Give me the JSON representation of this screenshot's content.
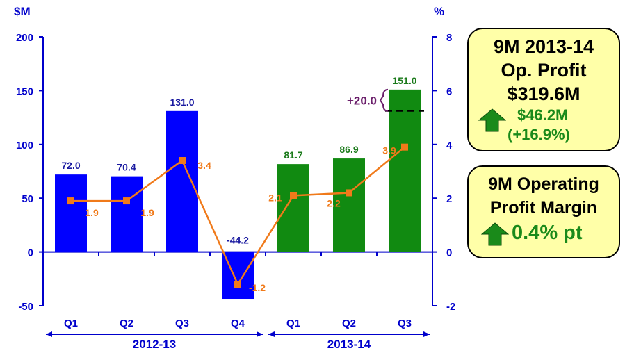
{
  "chart_data": {
    "type": "bar",
    "left_axis_unit": "$M",
    "right_axis_unit": "%",
    "ylim_left": [
      -50,
      200
    ],
    "yticks_left": [
      "-50",
      "0",
      "50",
      "100",
      "150",
      "200"
    ],
    "ylim_right": [
      -2,
      8
    ],
    "yticks_right": [
      "-2",
      "0",
      "2",
      "4",
      "6",
      "8"
    ],
    "categories": [
      "Q1",
      "Q2",
      "Q3",
      "Q4",
      "Q1",
      "Q2",
      "Q3"
    ],
    "periods": [
      {
        "label": "2012-13"
      },
      {
        "label": "2013-14"
      }
    ],
    "series": [
      {
        "type": "bar",
        "axis": "left",
        "values": [
          72.0,
          70.4,
          131.0,
          -44.2,
          81.7,
          86.9,
          151.0
        ],
        "labels": [
          "72.0",
          "70.4",
          "131.0",
          "-44.2",
          "81.7",
          "86.9",
          "151.0"
        ],
        "colors": [
          "#0000ff",
          "#0000ff",
          "#0000ff",
          "#0000ff",
          "#118a11",
          "#118a11",
          "#118a11"
        ],
        "label_colors": [
          "#1a1aa0",
          "#1a1aa0",
          "#1a1aa0",
          "#1a1aa0",
          "#1a7a1a",
          "#1a7a1a",
          "#1a7a1a"
        ]
      },
      {
        "type": "line",
        "axis": "right",
        "color": "#f07a1a",
        "values": [
          1.9,
          1.9,
          3.4,
          -1.2,
          2.1,
          2.2,
          3.9
        ],
        "labels": [
          "1.9",
          "1.9",
          "3.4",
          "-1.2",
          "2.1",
          "2.2",
          "3.9"
        ]
      }
    ],
    "annotation": {
      "text": "+20.0",
      "color": "#6b1f6b",
      "reference_value": 131.0
    }
  },
  "boxes": {
    "profit": {
      "line1": "9M 2013-14",
      "line2": "Op. Profit",
      "line3": "$319.6M",
      "change_amount": "$46.2M",
      "change_pct": "(+16.9%)"
    },
    "margin": {
      "line1": "9M Operating",
      "line2": "Profit Margin",
      "change": "0.4% pt"
    }
  },
  "colors": {
    "axis": "#0000cc",
    "bar_blue": "#0000ff",
    "bar_green": "#118a11",
    "line": "#f07a1a",
    "box_bg": "#ffffa8",
    "arrow": "#1a8a1a"
  }
}
